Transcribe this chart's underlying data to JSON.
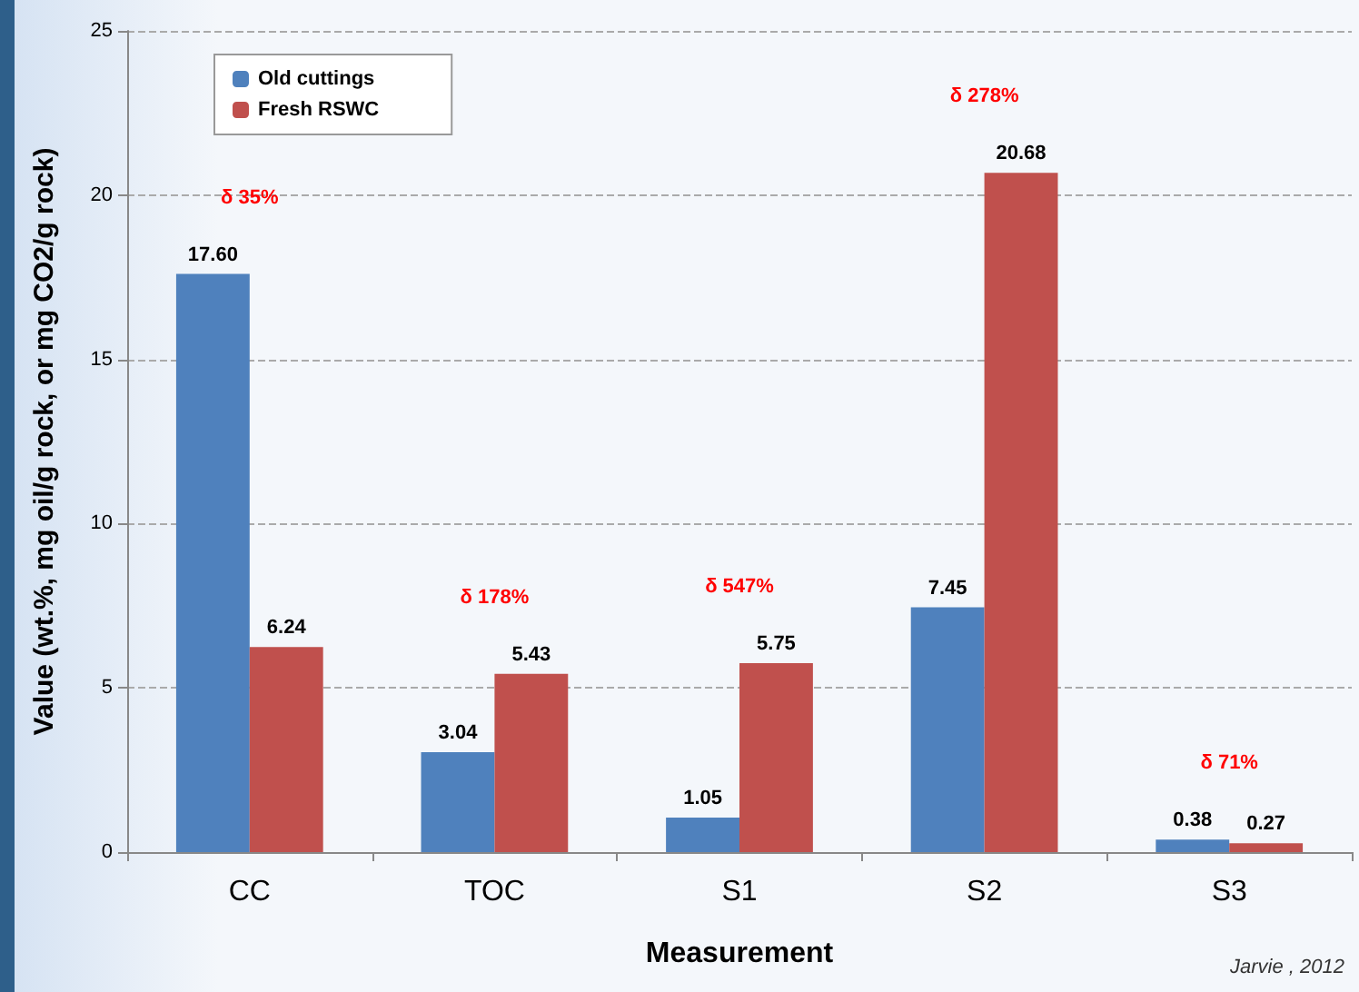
{
  "chart_data": {
    "type": "bar",
    "xlabel": "Measurement",
    "ylabel": "Value (wt.%, mg oil/g rock, or mg CO2/g rock)",
    "categories": [
      "CC",
      "TOC",
      "S1",
      "S2",
      "S3"
    ],
    "series": [
      {
        "name": "Old cuttings",
        "color": "#4f81bd",
        "values": [
          17.6,
          3.04,
          1.05,
          7.45,
          0.38
        ],
        "value_labels": [
          "17.60",
          "3.04",
          "1.05",
          "7.45",
          "0.38"
        ]
      },
      {
        "name": "Fresh RSWC",
        "color": "#c0504d",
        "values": [
          6.24,
          5.43,
          5.75,
          20.68,
          0.27
        ],
        "value_labels": [
          "6.24",
          "5.43",
          "5.75",
          "20.68",
          "0.27"
        ]
      }
    ],
    "ylim": [
      0,
      25
    ],
    "yticks": [
      0,
      5,
      10,
      15,
      20,
      25
    ],
    "grid": "y",
    "legend": "top left",
    "annotations": [
      "δ 35%",
      "δ 178%",
      "δ 547%",
      "δ 278%",
      "δ 71%",
      "Jarvie , 2012"
    ]
  }
}
